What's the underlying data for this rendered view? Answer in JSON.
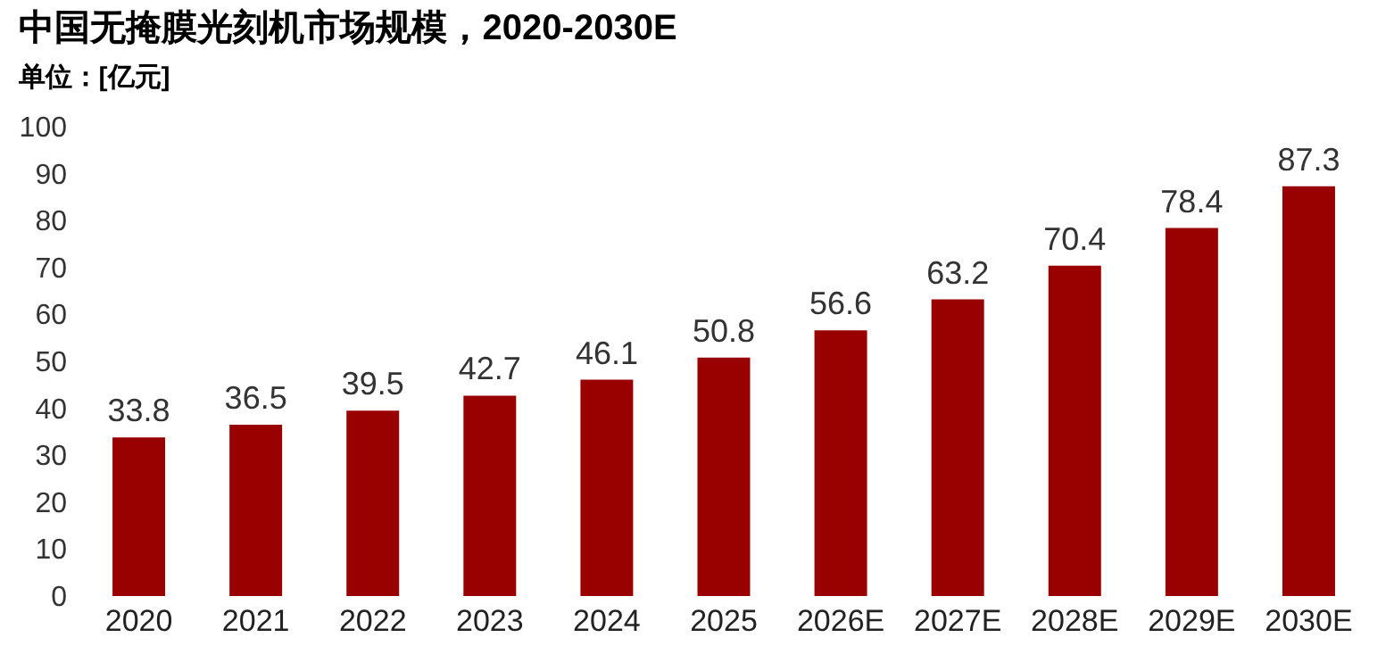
{
  "chart_data": {
    "type": "bar",
    "title": "中国无掩膜光刻机市场规模，2020-2030E",
    "subtitle": "单位：[亿元]",
    "categories": [
      "2020",
      "2021",
      "2022",
      "2023",
      "2024",
      "2025",
      "2026E",
      "2027E",
      "2028E",
      "2029E",
      "2030E"
    ],
    "values": [
      33.8,
      36.5,
      39.5,
      42.7,
      46.1,
      50.8,
      56.6,
      63.2,
      70.4,
      78.4,
      87.3
    ],
    "color": "#990000",
    "ylim": [
      0,
      100
    ],
    "yticks": [
      0,
      10,
      20,
      30,
      40,
      50,
      60,
      70,
      80,
      90,
      100
    ],
    "grid": false,
    "data_labels": true
  }
}
